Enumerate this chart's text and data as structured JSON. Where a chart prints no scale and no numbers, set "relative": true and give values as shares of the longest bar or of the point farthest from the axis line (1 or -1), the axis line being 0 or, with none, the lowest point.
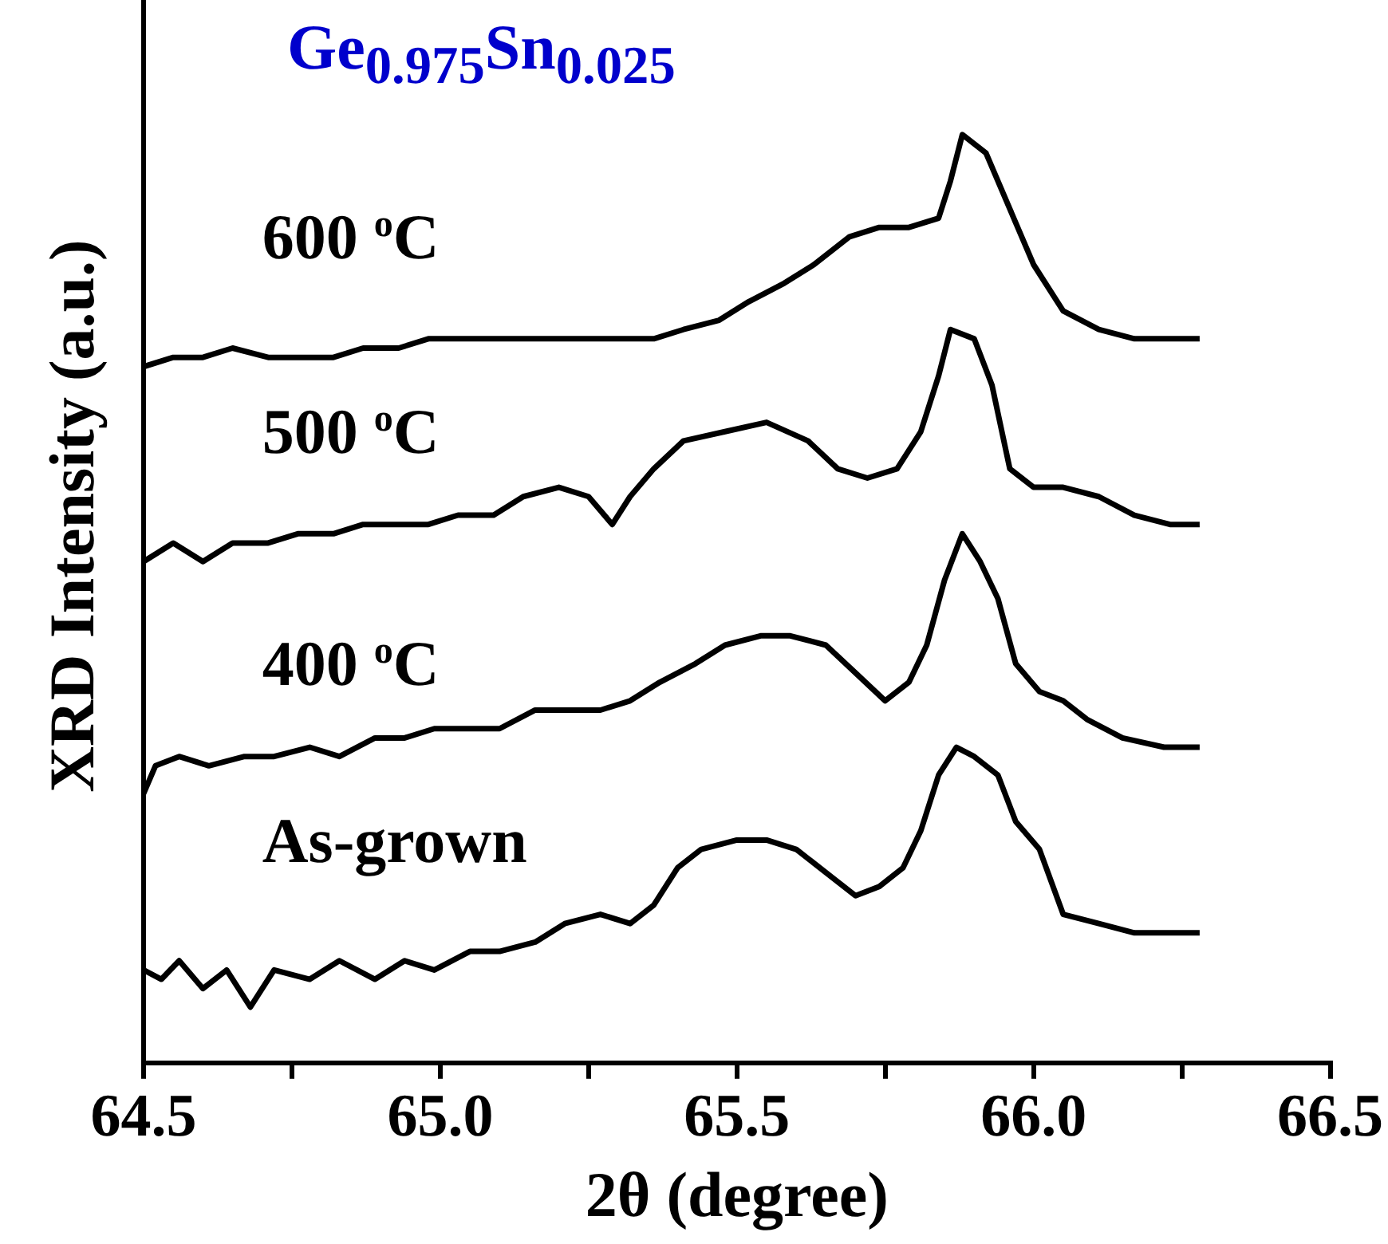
{
  "chart_data": {
    "type": "line",
    "title": "Ge$_{0.975}$Sn$_{0.025}$",
    "xlabel": "2θ (degree)",
    "ylabel": "XRD Intensity (a.u.)",
    "relative": true,
    "grid": false,
    "legend": false,
    "marker": "none",
    "line_style": "solid",
    "xlim": [
      64.5,
      66.5
    ],
    "xticks": [
      64.5,
      {
        "value": 64.75,
        "label": null
      },
      {
        "value": 65,
        "label": "65.0"
      },
      {
        "value": 65.25,
        "label": null
      },
      65.5,
      {
        "value": 65.75,
        "label": null
      },
      {
        "value": 66,
        "label": "66.0"
      },
      {
        "value": 66.25,
        "label": null
      },
      66.5
    ],
    "series": [
      {
        "name": "As-grown",
        "color": "#000000",
        "x": [
          64.5,
          64.53,
          64.56,
          64.6,
          64.64,
          64.68,
          64.72,
          64.78,
          64.83,
          64.89,
          64.94,
          64.99,
          65.05,
          65.1,
          65.16,
          65.21,
          65.27,
          65.32,
          65.36,
          65.4,
          65.44,
          65.5,
          65.55,
          65.6,
          65.66,
          65.7,
          65.74,
          65.78,
          65.81,
          65.84,
          65.87,
          65.9,
          65.94,
          65.97,
          66.01,
          66.05,
          66.11,
          66.17,
          66.23,
          66.28
        ],
        "values": [
          0.1,
          0.09,
          0.11,
          0.08,
          0.1,
          0.06,
          0.1,
          0.09,
          0.11,
          0.09,
          0.11,
          0.1,
          0.12,
          0.12,
          0.13,
          0.15,
          0.16,
          0.15,
          0.17,
          0.21,
          0.23,
          0.24,
          0.24,
          0.23,
          0.2,
          0.18,
          0.19,
          0.21,
          0.25,
          0.31,
          0.34,
          0.33,
          0.31,
          0.26,
          0.23,
          0.16,
          0.15,
          0.14,
          0.14,
          0.14
        ]
      },
      {
        "name": "400 $^{o}$C",
        "color": "#000000",
        "x": [
          64.5,
          64.52,
          64.56,
          64.61,
          64.67,
          64.72,
          64.78,
          64.83,
          64.89,
          64.94,
          64.99,
          65.05,
          65.1,
          65.16,
          65.21,
          65.27,
          65.32,
          65.37,
          65.43,
          65.48,
          65.54,
          65.59,
          65.65,
          65.7,
          65.75,
          65.79,
          65.82,
          65.85,
          65.88,
          65.91,
          65.94,
          65.97,
          66.01,
          66.05,
          66.09,
          66.15,
          66.22,
          66.28
        ],
        "values": [
          0.29,
          0.32,
          0.33,
          0.32,
          0.33,
          0.33,
          0.34,
          0.33,
          0.35,
          0.35,
          0.36,
          0.36,
          0.36,
          0.38,
          0.38,
          0.38,
          0.39,
          0.41,
          0.43,
          0.45,
          0.46,
          0.46,
          0.45,
          0.42,
          0.39,
          0.41,
          0.45,
          0.52,
          0.57,
          0.54,
          0.5,
          0.43,
          0.4,
          0.39,
          0.37,
          0.35,
          0.34,
          0.34
        ]
      },
      {
        "name": "500 $^{o}$C",
        "color": "#000000",
        "x": [
          64.5,
          64.55,
          64.6,
          64.65,
          64.71,
          64.76,
          64.82,
          64.87,
          64.93,
          64.98,
          65.03,
          65.09,
          65.14,
          65.2,
          65.25,
          65.29,
          65.32,
          65.36,
          65.41,
          65.48,
          65.55,
          65.62,
          65.67,
          65.72,
          65.77,
          65.81,
          65.84,
          65.86,
          65.9,
          65.93,
          65.96,
          66.0,
          66.05,
          66.11,
          66.17,
          66.23,
          66.28
        ],
        "values": [
          0.54,
          0.56,
          0.54,
          0.56,
          0.56,
          0.57,
          0.57,
          0.58,
          0.58,
          0.58,
          0.59,
          0.59,
          0.61,
          0.62,
          0.61,
          0.58,
          0.61,
          0.64,
          0.67,
          0.68,
          0.69,
          0.67,
          0.64,
          0.63,
          0.64,
          0.68,
          0.74,
          0.79,
          0.78,
          0.73,
          0.64,
          0.62,
          0.62,
          0.61,
          0.59,
          0.58,
          0.58
        ]
      },
      {
        "name": "600 $^{o}$C",
        "color": "#000000",
        "x": [
          64.5,
          64.55,
          64.6,
          64.65,
          64.71,
          64.76,
          64.82,
          64.87,
          64.93,
          64.98,
          65.03,
          65.09,
          65.14,
          65.2,
          65.25,
          65.31,
          65.36,
          65.41,
          65.47,
          65.52,
          65.58,
          65.63,
          65.69,
          65.74,
          65.79,
          65.84,
          65.86,
          65.88,
          65.92,
          65.96,
          66.0,
          66.05,
          66.11,
          66.17,
          66.23,
          66.28
        ],
        "values": [
          0.75,
          0.76,
          0.76,
          0.77,
          0.76,
          0.76,
          0.76,
          0.77,
          0.77,
          0.78,
          0.78,
          0.78,
          0.78,
          0.78,
          0.78,
          0.78,
          0.78,
          0.79,
          0.8,
          0.82,
          0.84,
          0.86,
          0.89,
          0.9,
          0.9,
          0.91,
          0.95,
          1,
          0.98,
          0.92,
          0.86,
          0.81,
          0.79,
          0.78,
          0.78,
          0.78
        ]
      }
    ]
  }
}
